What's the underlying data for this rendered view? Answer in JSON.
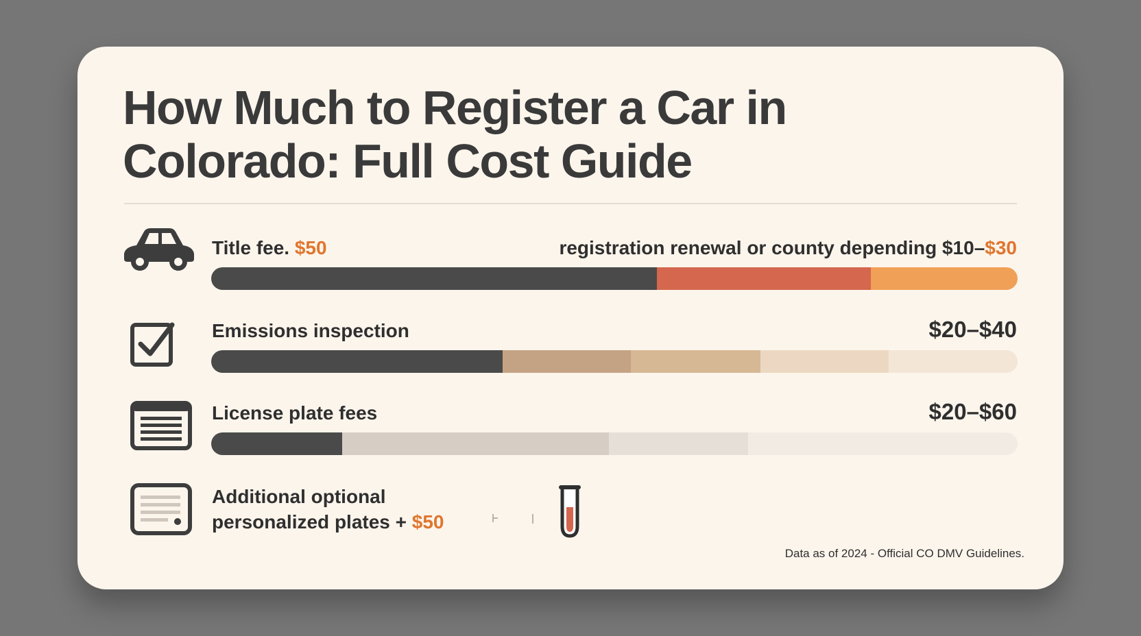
{
  "title_line1": "How Much to Register a Car in",
  "title_line2": "Colorado: Full Cost Guide",
  "chart_data": {
    "type": "bar",
    "rows": [
      {
        "icon": "car-icon",
        "label": "Title fee. ",
        "label_accent": "$50",
        "right_text": "registration renewal or county depending ",
        "right_value": "$10–",
        "right_value_accent": "$30",
        "segments": [
          {
            "fraction": 0.553,
            "color": "#4a4a4a"
          },
          {
            "fraction": 0.265,
            "color": "#d4674e"
          },
          {
            "fraction": 0.182,
            "color": "#f0a057"
          }
        ]
      },
      {
        "icon": "checkbox-icon",
        "label": "Emissions inspection",
        "right_value": "$20–$40",
        "segments": [
          {
            "fraction": 0.361,
            "color": "#4a4a4a"
          },
          {
            "fraction": 0.159,
            "color": "#c4a384"
          },
          {
            "fraction": 0.161,
            "color": "#d6b894"
          },
          {
            "fraction": 0.159,
            "color": "#ecd8c2"
          },
          {
            "fraction": 0.16,
            "color": "#f3e6d7"
          }
        ]
      },
      {
        "icon": "document-list-icon",
        "label": "License plate fees",
        "right_value": "$20–$60",
        "segments": [
          {
            "fraction": 0.162,
            "color": "#4a4a4a"
          },
          {
            "fraction": 0.331,
            "color": "#d6cec5"
          },
          {
            "fraction": 0.173,
            "color": "#e5dfd7"
          },
          {
            "fraction": 0.334,
            "color": "#f1ebe4"
          }
        ]
      }
    ],
    "optional": {
      "icon": "form-icon",
      "line1": "Additional optional",
      "line2": "personalized plates + ",
      "accent": "$50"
    }
  },
  "footnote": "Data as of 2024 - Official CO DMV Guidelines."
}
